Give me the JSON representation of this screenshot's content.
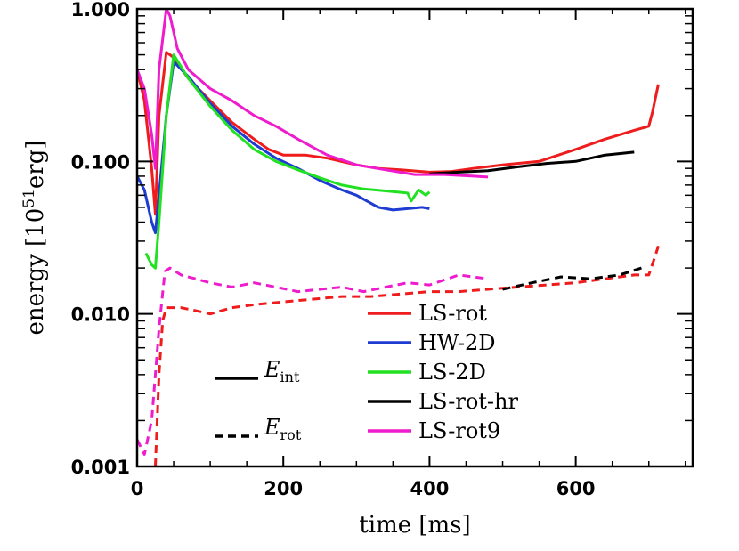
{
  "chart_data": {
    "type": "line",
    "title": "",
    "xlabel": "time [ms]",
    "ylabel": {
      "prefix": "energy [10",
      "exponent": "51",
      "suffix": "erg]"
    },
    "xscale": "linear",
    "yscale": "log",
    "xlim": [
      0,
      760
    ],
    "ylim": [
      0.001,
      1.0
    ],
    "x_ticks": [
      0,
      200,
      400,
      600
    ],
    "y_ticks": [
      {
        "value": 0.001,
        "label": "0.001"
      },
      {
        "value": 0.01,
        "label": "0.010"
      },
      {
        "value": 0.1,
        "label": "0.100"
      },
      {
        "value": 1.0,
        "label": "1.000"
      }
    ],
    "grid": false,
    "legend": {
      "position": "bottom-right"
    },
    "linestyle_key": [
      {
        "symbol": "E",
        "subscript": "int",
        "style": "solid"
      },
      {
        "symbol": "E",
        "subscript": "rot",
        "style": "dashed"
      }
    ],
    "series": [
      {
        "name": "LS-rot",
        "color": "#ee1c1c",
        "int": [
          [
            0,
            0.4
          ],
          [
            10,
            0.25
          ],
          [
            20,
            0.09
          ],
          [
            25,
            0.045
          ],
          [
            30,
            0.2
          ],
          [
            40,
            0.52
          ],
          [
            50,
            0.48
          ],
          [
            70,
            0.35
          ],
          [
            100,
            0.25
          ],
          [
            130,
            0.18
          ],
          [
            160,
            0.14
          ],
          [
            180,
            0.12
          ],
          [
            200,
            0.11
          ],
          [
            230,
            0.11
          ],
          [
            260,
            0.105
          ],
          [
            300,
            0.095
          ],
          [
            330,
            0.09
          ],
          [
            360,
            0.088
          ],
          [
            400,
            0.085
          ],
          [
            430,
            0.086
          ],
          [
            460,
            0.09
          ],
          [
            500,
            0.095
          ],
          [
            550,
            0.1
          ],
          [
            600,
            0.12
          ],
          [
            640,
            0.14
          ],
          [
            680,
            0.16
          ],
          [
            700,
            0.17
          ],
          [
            705,
            0.21
          ],
          [
            713,
            0.32
          ]
        ],
        "rot": [
          [
            25,
            0.001
          ],
          [
            30,
            0.004
          ],
          [
            35,
            0.009
          ],
          [
            40,
            0.011
          ],
          [
            60,
            0.011
          ],
          [
            80,
            0.0105
          ],
          [
            100,
            0.01
          ],
          [
            130,
            0.011
          ],
          [
            160,
            0.0115
          ],
          [
            200,
            0.012
          ],
          [
            240,
            0.0125
          ],
          [
            280,
            0.013
          ],
          [
            320,
            0.013
          ],
          [
            360,
            0.0135
          ],
          [
            400,
            0.014
          ],
          [
            440,
            0.014
          ],
          [
            480,
            0.0145
          ],
          [
            520,
            0.015
          ],
          [
            560,
            0.0155
          ],
          [
            600,
            0.016
          ],
          [
            640,
            0.017
          ],
          [
            680,
            0.018
          ],
          [
            700,
            0.018
          ],
          [
            710,
            0.025
          ],
          [
            715,
            0.03
          ]
        ]
      },
      {
        "name": "HW-2D",
        "color": "#1e3cd2",
        "int": [
          [
            0,
            0.08
          ],
          [
            10,
            0.065
          ],
          [
            20,
            0.04
          ],
          [
            25,
            0.034
          ],
          [
            30,
            0.06
          ],
          [
            40,
            0.2
          ],
          [
            50,
            0.45
          ],
          [
            70,
            0.36
          ],
          [
            100,
            0.24
          ],
          [
            130,
            0.17
          ],
          [
            160,
            0.13
          ],
          [
            190,
            0.105
          ],
          [
            220,
            0.09
          ],
          [
            250,
            0.075
          ],
          [
            280,
            0.065
          ],
          [
            300,
            0.06
          ],
          [
            330,
            0.05
          ],
          [
            350,
            0.048
          ],
          [
            370,
            0.049
          ],
          [
            390,
            0.05
          ],
          [
            400,
            0.049
          ]
        ]
      },
      {
        "name": "LS-2D",
        "color": "#22e022",
        "int": [
          [
            12,
            0.025
          ],
          [
            20,
            0.021
          ],
          [
            25,
            0.02
          ],
          [
            30,
            0.04
          ],
          [
            40,
            0.2
          ],
          [
            50,
            0.5
          ],
          [
            70,
            0.35
          ],
          [
            100,
            0.23
          ],
          [
            130,
            0.16
          ],
          [
            160,
            0.12
          ],
          [
            190,
            0.1
          ],
          [
            220,
            0.088
          ],
          [
            250,
            0.078
          ],
          [
            280,
            0.07
          ],
          [
            310,
            0.066
          ],
          [
            340,
            0.064
          ],
          [
            370,
            0.062
          ],
          [
            375,
            0.055
          ],
          [
            385,
            0.065
          ],
          [
            395,
            0.06
          ],
          [
            400,
            0.063
          ]
        ]
      },
      {
        "name": "LS-rot-hr",
        "color": "#000000",
        "int": [
          [
            400,
            0.083
          ],
          [
            440,
            0.085
          ],
          [
            480,
            0.087
          ],
          [
            520,
            0.092
          ],
          [
            560,
            0.097
          ],
          [
            600,
            0.1
          ],
          [
            640,
            0.11
          ],
          [
            680,
            0.115
          ]
        ],
        "rot": [
          [
            500,
            0.0145
          ],
          [
            540,
            0.016
          ],
          [
            580,
            0.0175
          ],
          [
            620,
            0.017
          ],
          [
            660,
            0.018
          ],
          [
            690,
            0.02
          ]
        ]
      },
      {
        "name": "LS-rot9",
        "color": "#ee1ccc",
        "int": [
          [
            0,
            0.4
          ],
          [
            10,
            0.3
          ],
          [
            20,
            0.15
          ],
          [
            25,
            0.09
          ],
          [
            30,
            0.4
          ],
          [
            40,
            1.0
          ],
          [
            45,
            0.9
          ],
          [
            55,
            0.55
          ],
          [
            70,
            0.4
          ],
          [
            100,
            0.3
          ],
          [
            130,
            0.25
          ],
          [
            160,
            0.2
          ],
          [
            190,
            0.17
          ],
          [
            220,
            0.14
          ],
          [
            260,
            0.11
          ],
          [
            300,
            0.095
          ],
          [
            340,
            0.088
          ],
          [
            380,
            0.082
          ],
          [
            420,
            0.082
          ],
          [
            460,
            0.08
          ],
          [
            480,
            0.079
          ]
        ],
        "rot": [
          [
            0,
            0.0015
          ],
          [
            10,
            0.0012
          ],
          [
            20,
            0.002
          ],
          [
            30,
            0.008
          ],
          [
            38,
            0.019
          ],
          [
            45,
            0.02
          ],
          [
            60,
            0.018
          ],
          [
            80,
            0.017
          ],
          [
            100,
            0.016
          ],
          [
            130,
            0.015
          ],
          [
            160,
            0.016
          ],
          [
            190,
            0.015
          ],
          [
            220,
            0.014
          ],
          [
            250,
            0.0145
          ],
          [
            280,
            0.015
          ],
          [
            310,
            0.014
          ],
          [
            340,
            0.015
          ],
          [
            370,
            0.016
          ],
          [
            400,
            0.0155
          ],
          [
            440,
            0.018
          ],
          [
            480,
            0.017
          ]
        ]
      }
    ]
  }
}
